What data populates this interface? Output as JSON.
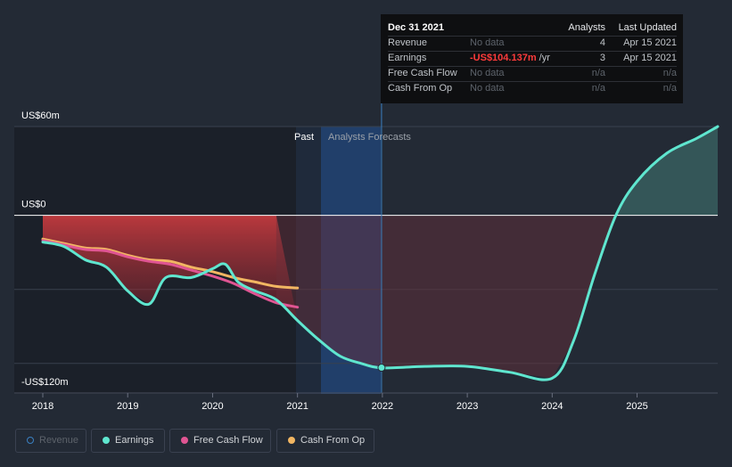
{
  "chart_data": {
    "type": "line",
    "y_unit": "US$ millions",
    "x_axis": {
      "ticks": [
        "2018",
        "2019",
        "2020",
        "2021",
        "2022",
        "2023",
        "2024",
        "2025"
      ],
      "range": [
        2018,
        2025.95
      ]
    },
    "y_axis": {
      "labels": [
        "US$60m",
        "US$0",
        "-US$120m"
      ],
      "range": [
        -120,
        60
      ],
      "gridlines": [
        60,
        0,
        -50,
        -100
      ]
    },
    "period_labels": {
      "past": "Past",
      "forecast": "Analysts Forecasts"
    },
    "past_end": 2020.75,
    "highlight_date": 2021.99,
    "series": [
      {
        "name": "Earnings",
        "color": "#5fe6cf",
        "points": [
          [
            2018,
            -18
          ],
          [
            2018.25,
            -21
          ],
          [
            2018.5,
            -30
          ],
          [
            2018.75,
            -35
          ],
          [
            2019,
            -51
          ],
          [
            2019.25,
            -60
          ],
          [
            2019.45,
            -42
          ],
          [
            2019.75,
            -42
          ],
          [
            2020,
            -36
          ],
          [
            2020.15,
            -33
          ],
          [
            2020.3,
            -45
          ],
          [
            2020.5,
            -51
          ],
          [
            2020.75,
            -57
          ],
          [
            2021,
            -71
          ],
          [
            2021.25,
            -84
          ],
          [
            2021.5,
            -95
          ],
          [
            2021.75,
            -100
          ],
          [
            2022,
            -103
          ],
          [
            2022.5,
            -102
          ],
          [
            2023,
            -102
          ],
          [
            2023.5,
            -106
          ],
          [
            2024,
            -110
          ],
          [
            2024.25,
            -85
          ],
          [
            2024.5,
            -40
          ],
          [
            2024.75,
            0
          ],
          [
            2025,
            23
          ],
          [
            2025.35,
            42
          ],
          [
            2025.7,
            52
          ],
          [
            2025.95,
            60
          ]
        ]
      },
      {
        "name": "Free Cash Flow",
        "color": "#e05593",
        "points": [
          [
            2018,
            -17
          ],
          [
            2018.25,
            -20
          ],
          [
            2018.5,
            -23
          ],
          [
            2018.75,
            -24
          ],
          [
            2019,
            -28
          ],
          [
            2019.25,
            -31
          ],
          [
            2019.5,
            -33
          ],
          [
            2019.75,
            -37
          ],
          [
            2020,
            -41
          ],
          [
            2020.25,
            -46
          ],
          [
            2020.5,
            -53
          ],
          [
            2020.75,
            -59
          ],
          [
            2021,
            -62
          ]
        ]
      },
      {
        "name": "Cash From Op",
        "color": "#f2b662",
        "points": [
          [
            2018,
            -16
          ],
          [
            2018.25,
            -19
          ],
          [
            2018.5,
            -22
          ],
          [
            2018.75,
            -23
          ],
          [
            2019,
            -27
          ],
          [
            2019.25,
            -30
          ],
          [
            2019.5,
            -31
          ],
          [
            2019.75,
            -35
          ],
          [
            2020,
            -38
          ],
          [
            2020.25,
            -42
          ],
          [
            2020.5,
            -45
          ],
          [
            2020.75,
            -48
          ],
          [
            2021,
            -49
          ]
        ]
      }
    ],
    "legend": [
      {
        "name": "Revenue",
        "color": "#3a80c2",
        "disabled": true
      },
      {
        "name": "Earnings",
        "color": "#5fe6cf"
      },
      {
        "name": "Free Cash Flow",
        "color": "#e05593"
      },
      {
        "name": "Cash From Op",
        "color": "#f2b662"
      }
    ],
    "tooltip": {
      "date": "Dec 31 2021",
      "columns": [
        "Analysts",
        "Last Updated"
      ],
      "rows": [
        {
          "label": "Revenue",
          "value": "No data",
          "analysts": "4",
          "updated": "Apr 15 2021"
        },
        {
          "label": "Earnings",
          "value": "-US$104.137m",
          "unit": " /yr",
          "analysts": "3",
          "updated": "Apr 15 2021"
        },
        {
          "label": "Free Cash Flow",
          "value": "No data",
          "analysts": "n/a",
          "updated": "n/a"
        },
        {
          "label": "Cash From Op",
          "value": "No data",
          "analysts": "n/a",
          "updated": "n/a"
        }
      ]
    }
  }
}
